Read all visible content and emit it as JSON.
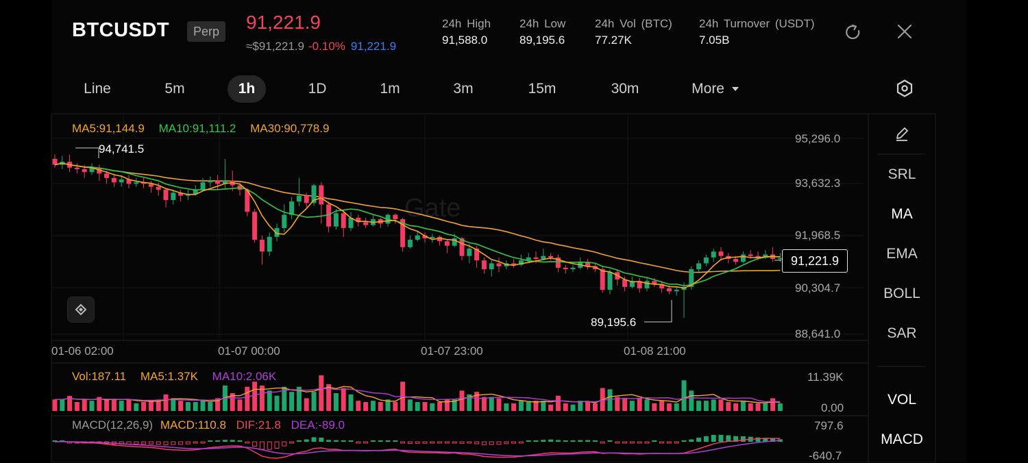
{
  "header": {
    "symbol": "BTCUSDT",
    "contract_type": "Perp",
    "last_price": "91,221.9",
    "index_price": "≈$91,221.9",
    "change": "-0.10%",
    "mark_price": "91,221.9",
    "stats": [
      {
        "label": "24h High",
        "value": "91,588.0"
      },
      {
        "label": "24h Low",
        "value": "89,195.6"
      },
      {
        "label": "24h Vol (BTC)",
        "value": "77.27K"
      },
      {
        "label": "24h Turnover (USDT)",
        "value": "7.05B"
      }
    ]
  },
  "intervals": [
    "Line",
    "5m",
    "1h",
    "1D",
    "1m",
    "3m",
    "15m",
    "30m"
  ],
  "active_interval": "1h",
  "more_label": "More",
  "indicators": {
    "main": [
      "SRL",
      "MA",
      "EMA",
      "BOLL",
      "SAR"
    ],
    "sub": [
      "VOL",
      "MACD"
    ],
    "active": [
      "MA",
      "VOL",
      "MACD"
    ]
  },
  "watermark": "Gate",
  "colors": {
    "up": "#1fa66e",
    "down": "#f23c63",
    "ma5": "#f5a623",
    "ma10": "#34c74a",
    "ma30": "#f0a531",
    "vol_ma10": "#b23ddb",
    "accent_red": "#f0455f",
    "accent_blue": "#3a7cff"
  },
  "chart_data": [
    {
      "type": "candlestick",
      "legend": {
        "ma5": "MA5:91,144.9",
        "ma10": "MA10:91,111.2",
        "ma30": "MA30:90,778.9"
      },
      "y_ticks": [
        "95,296.0",
        "93,632.3",
        "91,968.5",
        "90,304.7",
        "88,641.0"
      ],
      "ylim": [
        88641.0,
        95296.0
      ],
      "x_ticks": [
        "01-06 02:00",
        "01-07 00:00",
        "01-07 23:00",
        "01-08 21:00"
      ],
      "max_label": "94,741.5",
      "min_label": "89,195.6",
      "current_price_label": "91,221.9",
      "candles": [
        [
          94600,
          94400,
          94750,
          94300
        ],
        [
          94400,
          94500,
          94700,
          94250
        ],
        [
          94500,
          94300,
          94741.5,
          94150
        ],
        [
          94300,
          94250,
          94450,
          94100
        ],
        [
          94250,
          94150,
          94400,
          93950
        ],
        [
          94150,
          94300,
          94450,
          94050
        ],
        [
          94300,
          94100,
          94400,
          93850
        ],
        [
          94100,
          93950,
          94200,
          93750
        ],
        [
          93950,
          93800,
          94100,
          93650
        ],
        [
          93800,
          93900,
          94050,
          93650
        ],
        [
          93900,
          93750,
          94050,
          93600
        ],
        [
          93750,
          93800,
          93950,
          93650
        ],
        [
          93800,
          93750,
          93950,
          93600
        ],
        [
          93750,
          93650,
          93850,
          93450
        ],
        [
          93650,
          93550,
          93800,
          93350
        ],
        [
          93550,
          93200,
          93600,
          92950
        ],
        [
          93200,
          93450,
          93550,
          93050
        ],
        [
          93450,
          93350,
          93550,
          93150
        ],
        [
          93350,
          93400,
          93550,
          93200
        ],
        [
          93400,
          93550,
          93700,
          93350
        ],
        [
          93550,
          93800,
          93950,
          93500
        ],
        [
          93800,
          93850,
          94000,
          93650
        ],
        [
          93850,
          93750,
          94050,
          93550
        ],
        [
          93750,
          93850,
          94600,
          93600
        ],
        [
          93850,
          93700,
          94200,
          93500
        ],
        [
          93700,
          93550,
          93800,
          93350
        ],
        [
          93550,
          92800,
          93600,
          92650
        ],
        [
          92800,
          91850,
          92900,
          91750
        ],
        [
          91850,
          91450,
          92000,
          91000
        ],
        [
          91450,
          91950,
          92100,
          91300
        ],
        [
          91950,
          92250,
          92400,
          91800
        ],
        [
          92250,
          92700,
          93050,
          92100
        ],
        [
          92700,
          93150,
          93300,
          92550
        ],
        [
          93150,
          93350,
          93950,
          93000
        ],
        [
          93350,
          93100,
          93450,
          92950
        ],
        [
          93100,
          93700,
          93750,
          93000
        ],
        [
          93700,
          93050,
          93800,
          92400
        ],
        [
          93050,
          92300,
          93150,
          92100
        ],
        [
          92300,
          92750,
          92900,
          92200
        ],
        [
          92750,
          92250,
          92850,
          91950
        ],
        [
          92250,
          92600,
          92800,
          92150
        ],
        [
          92600,
          92450,
          92700,
          92300
        ],
        [
          92450,
          92350,
          92600,
          92250
        ],
        [
          92350,
          92550,
          92700,
          92300
        ],
        [
          92550,
          92400,
          92600,
          92250
        ],
        [
          92400,
          92700,
          92750,
          92300
        ],
        [
          92700,
          92550,
          92750,
          92400
        ],
        [
          92550,
          91600,
          92600,
          91450
        ],
        [
          91600,
          91850,
          92000,
          91550
        ],
        [
          91850,
          92000,
          92150,
          91800
        ],
        [
          92000,
          91900,
          92100,
          91750
        ],
        [
          91900,
          91950,
          92050,
          91750
        ],
        [
          91950,
          91800,
          92000,
          91650
        ],
        [
          91800,
          91650,
          91850,
          91400
        ],
        [
          91650,
          91900,
          92050,
          91600
        ],
        [
          91900,
          91300,
          91950,
          91150
        ],
        [
          91300,
          91550,
          91700,
          91050
        ],
        [
          91550,
          91150,
          91650,
          90900
        ],
        [
          91150,
          90850,
          91250,
          90700
        ],
        [
          90850,
          91050,
          91150,
          90600
        ],
        [
          91050,
          90950,
          91250,
          90750
        ],
        [
          90950,
          91050,
          91150,
          90850
        ],
        [
          91050,
          91000,
          91200,
          90900
        ],
        [
          91000,
          91150,
          91350,
          90950
        ],
        [
          91150,
          91250,
          91400,
          91050
        ],
        [
          91250,
          91200,
          91450,
          91050
        ],
        [
          91200,
          91300,
          91550,
          91150
        ],
        [
          91300,
          91250,
          91400,
          91150
        ],
        [
          91250,
          90900,
          91350,
          90750
        ],
        [
          90900,
          90850,
          91000,
          90700
        ],
        [
          90850,
          90900,
          91000,
          90750
        ],
        [
          90900,
          91100,
          91250,
          90850
        ],
        [
          91100,
          90950,
          91200,
          90850
        ],
        [
          90950,
          90850,
          91050,
          90750
        ],
        [
          90850,
          90150,
          90950,
          90050
        ],
        [
          90150,
          90750,
          90850,
          90000
        ],
        [
          90750,
          90500,
          90850,
          90300
        ],
        [
          90500,
          90250,
          90600,
          90100
        ],
        [
          90250,
          90450,
          90600,
          90200
        ],
        [
          90450,
          90200,
          90550,
          90050
        ],
        [
          90200,
          90450,
          90550,
          90100
        ],
        [
          90450,
          90350,
          90550,
          90250
        ],
        [
          90350,
          90200,
          90450,
          90050
        ],
        [
          90200,
          90100,
          90300,
          90000
        ],
        [
          90100,
          90150,
          90250,
          89950
        ],
        [
          90150,
          90250,
          90400,
          89195.6
        ],
        [
          90250,
          90850,
          90950,
          90150
        ],
        [
          90850,
          91050,
          91150,
          90750
        ],
        [
          91050,
          91250,
          91350,
          90950
        ],
        [
          91250,
          91450,
          91550,
          91100
        ],
        [
          91450,
          91300,
          91600,
          91150
        ],
        [
          91300,
          91200,
          91400,
          91050
        ],
        [
          91200,
          91100,
          91300,
          91000
        ],
        [
          91100,
          91350,
          91450,
          91050
        ],
        [
          91350,
          91300,
          91500,
          91200
        ],
        [
          91300,
          91250,
          91450,
          91150
        ],
        [
          91250,
          91350,
          91500,
          91200
        ],
        [
          91350,
          91200,
          91600,
          91100
        ],
        [
          91200,
          91221.9,
          91400,
          91100
        ]
      ]
    },
    {
      "type": "bar",
      "name": "volume",
      "legend": {
        "vol": "Vol:187.11",
        "ma5": "MA5:1.37K",
        "ma10": "MA10:2.06K"
      },
      "y_ticks": [
        "11.39K",
        "0.00"
      ],
      "ylim": [
        0,
        11390
      ]
    },
    {
      "type": "bar",
      "name": "macd",
      "legend": {
        "title": "MACD(12,26,9)",
        "macd": "MACD:110.8",
        "dif": "DIF:21.8",
        "dea": "DEA:-89.0"
      },
      "y_ticks": [
        "797.6",
        "-640.7"
      ],
      "ylim": [
        -640.7,
        797.6
      ]
    }
  ]
}
